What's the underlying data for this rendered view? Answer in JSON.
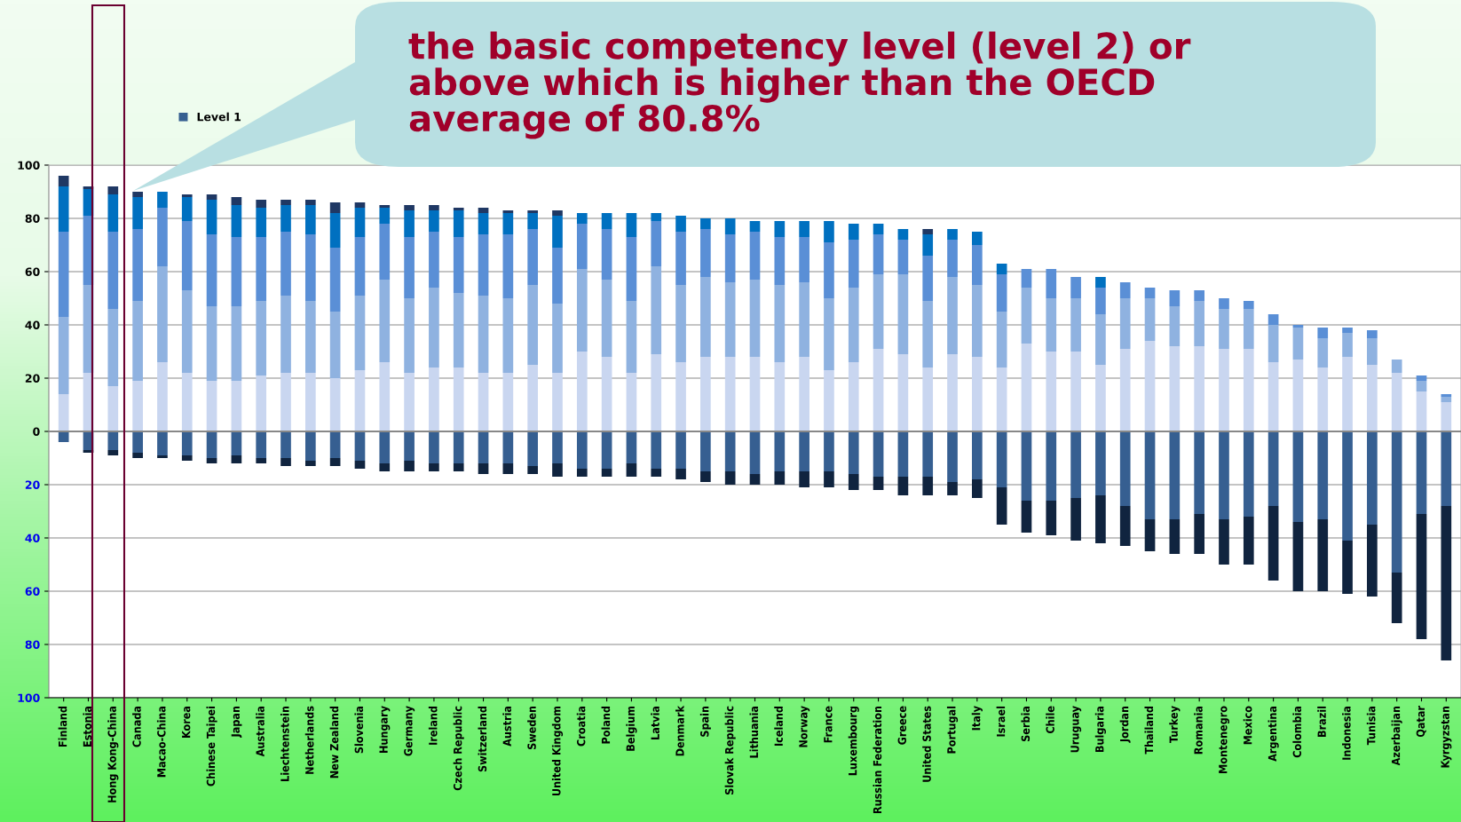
{
  "chart_data": {
    "type": "bar",
    "stacked": true,
    "categories": [
      "Finland",
      "Estonia",
      "Hong Kong-China",
      "Canada",
      "Macao-China",
      "Korea",
      "Chinese Taipei",
      "Japan",
      "Australia",
      "Liechtenstein",
      "Netherlands",
      "New Zealand",
      "Slovenia",
      "Hungary",
      "Germany",
      "Ireland",
      "Czech Republic",
      "Switzerland",
      "Austria",
      "Sweden",
      "United Kingdom",
      "Croatia",
      "Poland",
      "Belgium",
      "Latvia",
      "Denmark",
      "Spain",
      "Slovak Republic",
      "Lithuania",
      "Iceland",
      "Norway",
      "France",
      "Luxembourg",
      "Russian Federation",
      "Greece",
      "United States",
      "Portugal",
      "Italy",
      "Israel",
      "Serbia",
      "Chile",
      "Uruguay",
      "Bulgaria",
      "Jordan",
      "Thailand",
      "Turkey",
      "Romania",
      "Montenegro",
      "Mexico",
      "Argentina",
      "Colombia",
      "Brazil",
      "Indonesia",
      "Tunisia",
      "Azerbaijan",
      "Qatar",
      "Kyrgyzstan"
    ],
    "series": [
      {
        "color": "#c9d6f0",
        "values": [
          14,
          22,
          17,
          19,
          26,
          22,
          19,
          19,
          21,
          22,
          22,
          20,
          23,
          26,
          22,
          24,
          24,
          22,
          22,
          25,
          22,
          30,
          28,
          22,
          29,
          26,
          28,
          28,
          28,
          26,
          28,
          23,
          26,
          31,
          29,
          24,
          29,
          28,
          24,
          33,
          30,
          30,
          25,
          31,
          34,
          32,
          32,
          31,
          31,
          26,
          27,
          24,
          28,
          25,
          22,
          15,
          11
        ]
      },
      {
        "color": "#8fb2e0",
        "values": [
          29,
          33,
          29,
          30,
          36,
          31,
          28,
          28,
          28,
          29,
          27,
          25,
          28,
          31,
          28,
          30,
          28,
          29,
          28,
          30,
          26,
          31,
          29,
          27,
          33,
          29,
          30,
          28,
          29,
          29,
          28,
          27,
          28,
          28,
          30,
          25,
          29,
          27,
          21,
          21,
          20,
          20,
          19,
          19,
          16,
          15,
          17,
          15,
          15,
          14,
          12,
          11,
          9,
          10,
          5,
          4,
          2
        ]
      },
      {
        "color": "#5a8fd6",
        "values": [
          32,
          26,
          29,
          27,
          22,
          26,
          27,
          26,
          24,
          24,
          25,
          24,
          22,
          21,
          23,
          21,
          21,
          23,
          24,
          21,
          21,
          17,
          19,
          24,
          17,
          20,
          18,
          18,
          18,
          18,
          17,
          21,
          18,
          15,
          13,
          17,
          14,
          15,
          14,
          7,
          11,
          8,
          10,
          6,
          4,
          6,
          4,
          4,
          3,
          4,
          1,
          4,
          2,
          3,
          null,
          2,
          1
        ]
      },
      {
        "color": "#0070c0",
        "values": [
          17,
          10,
          14,
          12,
          6,
          9,
          13,
          12,
          11,
          10,
          11,
          13,
          11,
          6,
          10,
          8,
          10,
          8,
          8,
          6,
          12,
          4,
          6,
          9,
          3,
          6,
          4,
          6,
          4,
          6,
          6,
          8,
          6,
          4,
          4,
          8,
          4,
          5,
          4,
          null,
          null,
          null,
          4,
          null,
          null,
          null,
          null,
          null,
          null,
          null,
          null,
          null,
          null,
          null,
          null,
          null,
          null
        ]
      },
      {
        "color": "#1f3864",
        "values": [
          4,
          1,
          3,
          2,
          null,
          1,
          2,
          3,
          3,
          2,
          2,
          4,
          2,
          1,
          2,
          2,
          1,
          2,
          1,
          1,
          2,
          null,
          null,
          null,
          null,
          null,
          null,
          null,
          null,
          null,
          null,
          null,
          null,
          null,
          null,
          2,
          null,
          null,
          null,
          null,
          null,
          null,
          null,
          null,
          null,
          null,
          null,
          null,
          null,
          null,
          null,
          null,
          null,
          null,
          null,
          null,
          null
        ]
      },
      {
        "name": "Level 1",
        "color": "#365f91",
        "values": [
          -4,
          -7,
          -7,
          -8,
          -9,
          -9,
          -10,
          -9,
          -10,
          -10,
          -11,
          -10,
          -11,
          -12,
          -11,
          -12,
          -12,
          -12,
          -12,
          -13,
          -12,
          -14,
          -14,
          -12,
          -14,
          -14,
          -15,
          -15,
          -16,
          -15,
          -15,
          -15,
          -16,
          -17,
          -17,
          -17,
          -19,
          -18,
          -21,
          -26,
          -26,
          -25,
          -24,
          -28,
          -33,
          -33,
          -31,
          -33,
          -32,
          -28,
          -34,
          -33,
          -41,
          -35,
          -53,
          -31,
          -28
        ]
      },
      {
        "color": "#10243f",
        "values": [
          null,
          -1,
          -2,
          -2,
          -1,
          -2,
          -2,
          -3,
          -2,
          -3,
          -2,
          -3,
          -3,
          -3,
          -4,
          -3,
          -3,
          -4,
          -4,
          -3,
          -5,
          -3,
          -3,
          -5,
          -3,
          -4,
          -4,
          -5,
          -4,
          -5,
          -6,
          -6,
          -6,
          -5,
          -7,
          -7,
          -5,
          -7,
          -14,
          -12,
          -13,
          -16,
          -18,
          -15,
          -12,
          -13,
          -15,
          -17,
          -18,
          -28,
          -26,
          -27,
          -20,
          -27,
          -19,
          -47,
          -58
        ]
      }
    ],
    "ylim": [
      -100,
      100
    ],
    "yticks": [
      {
        "value": -100,
        "label": "100"
      },
      {
        "value": -80,
        "label": "80"
      },
      {
        "value": -60,
        "label": "60"
      },
      {
        "value": -40,
        "label": "40"
      },
      {
        "value": -20,
        "label": "20"
      },
      0,
      20,
      40,
      60,
      80,
      100
    ],
    "grid": "y",
    "legend": "top left",
    "annotations": [
      "the basic competency level (level 2) or\nabove which is higher than the OECD\naverage of 80.8%"
    ]
  }
}
